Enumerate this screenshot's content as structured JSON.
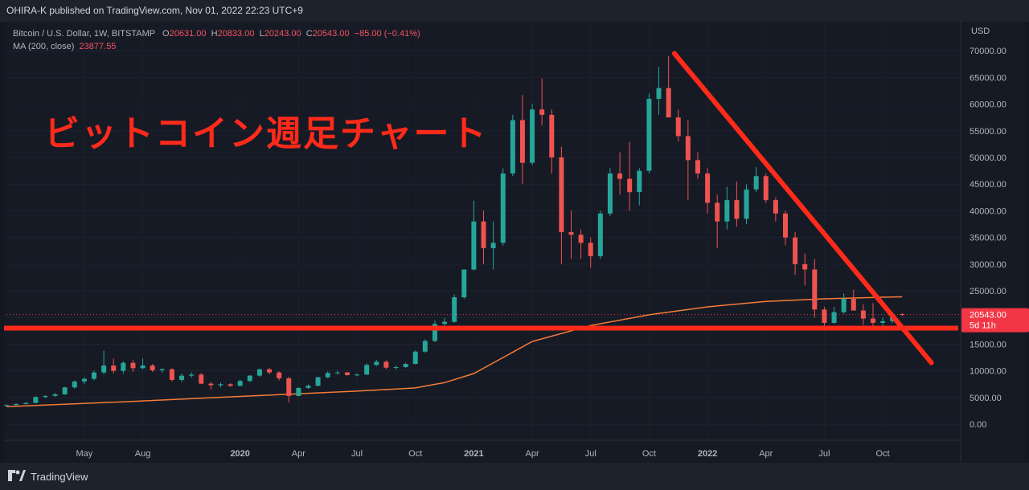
{
  "publisher": {
    "text": "OHIRA-K published on TradingView.com, Nov 01, 2022 22:23 UTC+9"
  },
  "legend": {
    "symbol": "Bitcoin / U.S. Dollar, 1W, BITSTAMP",
    "o_label": "O",
    "o_value": "20631.00",
    "h_label": "H",
    "h_value": "20833.00",
    "l_label": "L",
    "l_value": "20243.00",
    "c_label": "C",
    "c_value": "20543.00",
    "change": "−85.00 (−0.41%)",
    "ma_label": "MA (200, close)",
    "ma_value": "23877.55"
  },
  "annotation": {
    "text": "ビットコイン週足チャート",
    "color": "#ff2a1a"
  },
  "footer": {
    "logo_icon": "tradingview-logo-icon",
    "brand": "TradingView"
  },
  "colors": {
    "up": "#26a69a",
    "down": "#ef5350",
    "ma": "#f57c36",
    "drawing": "#ff2a1a",
    "price_tag": "#f23645"
  },
  "chart_data": {
    "type": "candlestick",
    "timeframe": "1W",
    "currency_label": "USD",
    "y_ticks": [
      "70000.00",
      "65000.00",
      "60000.00",
      "55000.00",
      "50000.00",
      "45000.00",
      "40000.00",
      "35000.00",
      "30000.00",
      "25000.00",
      "20000.00",
      "15000.00",
      "10000.00",
      "5000.00",
      "0.00"
    ],
    "ylim": [
      -3000,
      75000
    ],
    "x_ticks": [
      "May",
      "Aug",
      "2020",
      "Apr",
      "Jul",
      "Oct",
      "2021",
      "Apr",
      "Jul",
      "Oct",
      "2022",
      "Apr",
      "Jul",
      "Oct"
    ],
    "x_tick_months": [
      4,
      7,
      12,
      15,
      18,
      21,
      24,
      27,
      30,
      33,
      36,
      39,
      42,
      45
    ],
    "xlim_months": [
      0,
      49
    ],
    "last_price": "20543.00",
    "countdown": "5d 11h",
    "ohlc_month_points": [
      [
        0.0,
        3500,
        3700,
        3300,
        3600
      ],
      [
        0.5,
        3600,
        3900,
        3500,
        3800
      ],
      [
        1.0,
        3800,
        4100,
        3700,
        4000
      ],
      [
        1.5,
        4000,
        5200,
        3900,
        5100
      ],
      [
        2.0,
        5100,
        5400,
        4900,
        5300
      ],
      [
        2.5,
        5300,
        5800,
        5100,
        5600
      ],
      [
        3.0,
        5600,
        7000,
        5500,
        6900
      ],
      [
        3.5,
        6900,
        8200,
        6700,
        8000
      ],
      [
        4.0,
        8000,
        8800,
        7500,
        8500
      ],
      [
        4.5,
        8500,
        10000,
        8200,
        9700
      ],
      [
        5.0,
        9700,
        13800,
        9300,
        11000
      ],
      [
        5.5,
        11000,
        12300,
        9500,
        10000
      ],
      [
        6.0,
        10000,
        11800,
        9500,
        11500
      ],
      [
        6.5,
        11500,
        12000,
        9800,
        10500
      ],
      [
        7.0,
        10500,
        12300,
        10300,
        11000
      ],
      [
        7.5,
        11000,
        11300,
        9800,
        10100
      ],
      [
        8.0,
        10100,
        10500,
        9600,
        10300
      ],
      [
        8.5,
        10300,
        10500,
        8000,
        8300
      ],
      [
        9.0,
        8300,
        9500,
        7900,
        9100
      ],
      [
        9.5,
        9100,
        9700,
        8700,
        9300
      ],
      [
        10.0,
        9300,
        9600,
        7500,
        7600
      ],
      [
        10.5,
        7600,
        7900,
        6500,
        7300
      ],
      [
        11.0,
        7300,
        7800,
        6900,
        7500
      ],
      [
        11.5,
        7500,
        7700,
        7000,
        7200
      ],
      [
        12.0,
        7200,
        8300,
        7100,
        8100
      ],
      [
        12.5,
        8100,
        9200,
        7900,
        9100
      ],
      [
        13.0,
        9100,
        10400,
        8900,
        10300
      ],
      [
        13.5,
        10300,
        10500,
        9400,
        9700
      ],
      [
        14.0,
        9700,
        9900,
        8200,
        8600
      ],
      [
        14.5,
        8600,
        8900,
        4100,
        5300
      ],
      [
        15.0,
        5300,
        6900,
        5200,
        6800
      ],
      [
        15.5,
        6800,
        7500,
        6600,
        7200
      ],
      [
        16.0,
        7200,
        8900,
        7100,
        8800
      ],
      [
        16.5,
        8800,
        9900,
        8600,
        9600
      ],
      [
        17.0,
        9600,
        10000,
        9300,
        9700
      ],
      [
        17.5,
        9700,
        9800,
        9100,
        9200
      ],
      [
        18.0,
        9200,
        9500,
        9000,
        9300
      ],
      [
        18.5,
        9300,
        11400,
        9200,
        11100
      ],
      [
        19.0,
        11100,
        12100,
        10900,
        11700
      ],
      [
        19.5,
        11700,
        12000,
        10300,
        10600
      ],
      [
        20.0,
        10600,
        11000,
        10200,
        10700
      ],
      [
        20.5,
        10700,
        11500,
        10600,
        11300
      ],
      [
        21.0,
        11300,
        13800,
        11200,
        13600
      ],
      [
        21.5,
        13600,
        15900,
        13400,
        15600
      ],
      [
        22.0,
        15600,
        19400,
        15400,
        18800
      ],
      [
        22.5,
        18800,
        19900,
        17800,
        19200
      ],
      [
        23.0,
        19200,
        24300,
        19000,
        23800
      ],
      [
        23.5,
        23800,
        29000,
        23500,
        29000
      ],
      [
        24.0,
        29000,
        41900,
        28800,
        38000
      ],
      [
        24.5,
        38000,
        40000,
        30000,
        33000
      ],
      [
        25.0,
        33000,
        38000,
        29000,
        34000
      ],
      [
        25.5,
        34000,
        48000,
        33500,
        47000
      ],
      [
        26.0,
        47000,
        58000,
        46500,
        57000
      ],
      [
        26.5,
        57000,
        61700,
        45000,
        49000
      ],
      [
        27.0,
        49000,
        60000,
        48500,
        59000
      ],
      [
        27.5,
        59000,
        64800,
        56000,
        58000
      ],
      [
        28.0,
        58000,
        59000,
        47000,
        50000
      ],
      [
        28.5,
        50000,
        52000,
        30000,
        36000
      ],
      [
        29.0,
        36000,
        40000,
        31000,
        35500
      ],
      [
        29.5,
        35500,
        36500,
        31000,
        34000
      ],
      [
        30.0,
        34000,
        35000,
        29300,
        31500
      ],
      [
        30.5,
        31500,
        40000,
        31000,
        39500
      ],
      [
        31.0,
        39500,
        48000,
        39000,
        47000
      ],
      [
        31.5,
        47000,
        51000,
        43000,
        46000
      ],
      [
        32.0,
        46000,
        52900,
        40000,
        43500
      ],
      [
        32.5,
        43500,
        48000,
        41000,
        47500
      ],
      [
        33.0,
        47500,
        62000,
        47000,
        61000
      ],
      [
        33.5,
        61000,
        67000,
        58000,
        63000
      ],
      [
        34.0,
        63000,
        69000,
        58500,
        57500
      ],
      [
        34.5,
        57500,
        59000,
        53000,
        54000
      ],
      [
        35.0,
        54000,
        57000,
        42000,
        49500
      ],
      [
        35.5,
        49500,
        51000,
        46000,
        47000
      ],
      [
        36.0,
        47000,
        48000,
        39500,
        41500
      ],
      [
        36.5,
        41500,
        43000,
        33000,
        38000
      ],
      [
        37.0,
        38000,
        44500,
        36500,
        42000
      ],
      [
        37.5,
        42000,
        45500,
        37000,
        38500
      ],
      [
        38.0,
        38500,
        45000,
        37500,
        44000
      ],
      [
        38.5,
        44000,
        48200,
        43500,
        46500
      ],
      [
        39.0,
        46500,
        47000,
        41500,
        42000
      ],
      [
        39.5,
        42000,
        42500,
        38000,
        39500
      ],
      [
        40.0,
        39500,
        40000,
        33500,
        35000
      ],
      [
        40.5,
        35000,
        36000,
        28000,
        30000
      ],
      [
        41.0,
        30000,
        32000,
        26000,
        29000
      ],
      [
        41.5,
        29000,
        31000,
        20000,
        21500
      ],
      [
        42.0,
        21500,
        22000,
        17600,
        19000
      ],
      [
        42.5,
        19000,
        22000,
        18800,
        21000
      ],
      [
        43.0,
        21000,
        24500,
        20700,
        23500
      ],
      [
        43.5,
        23500,
        25200,
        22000,
        21300
      ],
      [
        44.0,
        21300,
        22500,
        18600,
        19800
      ],
      [
        44.5,
        19800,
        22700,
        18300,
        19000
      ],
      [
        45.0,
        19000,
        20000,
        18000,
        19300
      ],
      [
        45.5,
        19300,
        21000,
        19000,
        20600
      ],
      [
        46.0,
        20631,
        20833,
        20243,
        20543
      ]
    ],
    "ma_label": "MA (200, close)",
    "ma_points": [
      [
        0,
        3300
      ],
      [
        6,
        4200
      ],
      [
        12,
        5200
      ],
      [
        18,
        6200
      ],
      [
        21,
        6800
      ],
      [
        22.5,
        7800
      ],
      [
        24,
        9500
      ],
      [
        25.5,
        12500
      ],
      [
        27,
        15500
      ],
      [
        30,
        18500
      ],
      [
        33,
        20500
      ],
      [
        36,
        22000
      ],
      [
        39,
        23000
      ],
      [
        42,
        23500
      ],
      [
        45,
        23800
      ],
      [
        46,
        23877
      ]
    ],
    "drawings": [
      {
        "kind": "horizontal-line",
        "price": 18000
      },
      {
        "kind": "trend-line",
        "from": [
          34.3,
          69500
        ],
        "to": [
          47.5,
          11500
        ]
      }
    ]
  }
}
